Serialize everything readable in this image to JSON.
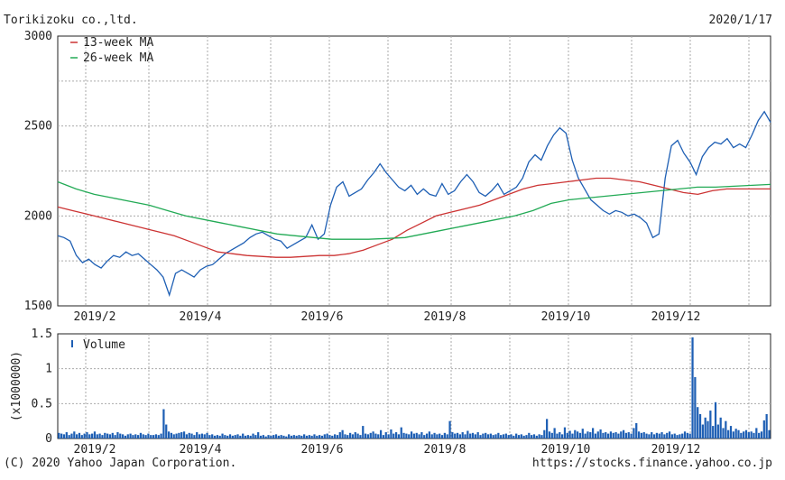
{
  "header": {
    "title": "Torikizoku co.,ltd.",
    "date": "2020/1/17"
  },
  "footer": {
    "copyright": "(C) 2020 Yahoo Japan Corporation.",
    "url": "https://stocks.finance.yahoo.co.jp"
  },
  "colors": {
    "price": "#1e5fb4",
    "ma13": "#cc3333",
    "ma26": "#22aa55",
    "volume": "#1e5fb4",
    "grid": "#aaaaaa"
  },
  "chart_data": [
    {
      "type": "line",
      "title": "Torikizoku co.,ltd.",
      "x_tick_labels": [
        "2019/2",
        "2019/4",
        "2019/6",
        "2019/8",
        "2019/10",
        "2019/12"
      ],
      "ylim": [
        1500,
        3000
      ],
      "y_ticks": [
        "1500",
        "2000",
        "2500",
        "3000"
      ],
      "grid": true,
      "legend_position": "top-left",
      "series": [
        {
          "name": "",
          "values": [
            1890,
            1880,
            1860,
            1780,
            1740,
            1760,
            1730,
            1710,
            1750,
            1780,
            1770,
            1800,
            1780,
            1790,
            1760,
            1730,
            1700,
            1660,
            1560,
            1680,
            1700,
            1680,
            1660,
            1700,
            1720,
            1730,
            1760,
            1790,
            1810,
            1830,
            1850,
            1880,
            1900,
            1910,
            1890,
            1870,
            1860,
            1820,
            1840,
            1860,
            1880,
            1950,
            1870,
            1900,
            2060,
            2160,
            2190,
            2110,
            2130,
            2150,
            2200,
            2240,
            2290,
            2240,
            2200,
            2160,
            2140,
            2170,
            2120,
            2150,
            2120,
            2110,
            2180,
            2120,
            2140,
            2190,
            2230,
            2190,
            2130,
            2110,
            2140,
            2180,
            2120,
            2140,
            2160,
            2210,
            2300,
            2340,
            2310,
            2390,
            2450,
            2490,
            2460,
            2310,
            2210,
            2150,
            2090,
            2060,
            2030,
            2010,
            2030,
            2020,
            2000,
            2010,
            1990,
            1960,
            1880,
            1900,
            2210,
            2390,
            2420,
            2350,
            2300,
            2230,
            2330,
            2380,
            2410,
            2400,
            2430,
            2380,
            2400,
            2380,
            2450,
            2530,
            2580,
            2520
          ]
        },
        {
          "name": "13-week MA",
          "values": [
            2050,
            2030,
            2010,
            1990,
            1970,
            1950,
            1930,
            1910,
            1890,
            1860,
            1830,
            1800,
            1790,
            1780,
            1775,
            1770,
            1770,
            1775,
            1780,
            1780,
            1790,
            1810,
            1840,
            1870,
            1920,
            1960,
            2000,
            2020,
            2040,
            2060,
            2090,
            2120,
            2150,
            2170,
            2180,
            2190,
            2200,
            2210,
            2210,
            2200,
            2190,
            2170,
            2150,
            2130,
            2120,
            2140,
            2150,
            2150,
            2150,
            2150
          ]
        },
        {
          "name": "26-week MA",
          "values": [
            2190,
            2150,
            2120,
            2100,
            2080,
            2060,
            2030,
            2000,
            1980,
            1960,
            1940,
            1920,
            1900,
            1890,
            1880,
            1870,
            1870,
            1870,
            1875,
            1880,
            1900,
            1920,
            1940,
            1960,
            1980,
            2000,
            2030,
            2070,
            2090,
            2100,
            2110,
            2120,
            2130,
            2140,
            2150,
            2160,
            2160,
            2165,
            2170,
            2175
          ]
        }
      ]
    },
    {
      "type": "bar",
      "ylabel": "(x1000000)",
      "ylim": [
        0,
        1.5
      ],
      "y_ticks": [
        "0",
        "0.5",
        "1",
        "1.5"
      ],
      "x_tick_labels": [
        "2019/2",
        "2019/4",
        "2019/6",
        "2019/8",
        "2019/10",
        "2019/12"
      ],
      "grid": true,
      "legend_position": "top-left",
      "series": [
        {
          "name": "Volume",
          "values": [
            0.08,
            0.07,
            0.06,
            0.09,
            0.05,
            0.07,
            0.1,
            0.06,
            0.08,
            0.05,
            0.07,
            0.09,
            0.06,
            0.07,
            0.1,
            0.06,
            0.07,
            0.05,
            0.08,
            0.07,
            0.06,
            0.08,
            0.05,
            0.09,
            0.07,
            0.06,
            0.04,
            0.06,
            0.07,
            0.05,
            0.06,
            0.05,
            0.08,
            0.06,
            0.05,
            0.07,
            0.05,
            0.05,
            0.06,
            0.05,
            0.07,
            0.42,
            0.2,
            0.1,
            0.08,
            0.06,
            0.07,
            0.08,
            0.09,
            0.1,
            0.06,
            0.08,
            0.07,
            0.05,
            0.09,
            0.06,
            0.07,
            0.06,
            0.08,
            0.05,
            0.06,
            0.04,
            0.05,
            0.04,
            0.07,
            0.05,
            0.04,
            0.06,
            0.04,
            0.05,
            0.06,
            0.04,
            0.07,
            0.04,
            0.05,
            0.04,
            0.07,
            0.05,
            0.09,
            0.04,
            0.05,
            0.03,
            0.05,
            0.04,
            0.05,
            0.06,
            0.04,
            0.05,
            0.04,
            0.03,
            0.06,
            0.04,
            0.05,
            0.04,
            0.05,
            0.04,
            0.06,
            0.04,
            0.05,
            0.04,
            0.06,
            0.04,
            0.05,
            0.04,
            0.06,
            0.07,
            0.05,
            0.04,
            0.06,
            0.05,
            0.09,
            0.12,
            0.06,
            0.05,
            0.08,
            0.06,
            0.09,
            0.07,
            0.05,
            0.18,
            0.07,
            0.06,
            0.08,
            0.1,
            0.07,
            0.06,
            0.12,
            0.05,
            0.09,
            0.06,
            0.13,
            0.07,
            0.09,
            0.06,
            0.16,
            0.08,
            0.07,
            0.06,
            0.1,
            0.07,
            0.08,
            0.06,
            0.09,
            0.05,
            0.07,
            0.1,
            0.06,
            0.08,
            0.06,
            0.07,
            0.05,
            0.08,
            0.06,
            0.25,
            0.09,
            0.07,
            0.08,
            0.06,
            0.09,
            0.06,
            0.11,
            0.07,
            0.08,
            0.06,
            0.09,
            0.05,
            0.07,
            0.08,
            0.06,
            0.07,
            0.05,
            0.06,
            0.08,
            0.05,
            0.06,
            0.07,
            0.05,
            0.06,
            0.04,
            0.07,
            0.05,
            0.06,
            0.04,
            0.05,
            0.08,
            0.05,
            0.06,
            0.04,
            0.06,
            0.05,
            0.12,
            0.28,
            0.1,
            0.08,
            0.15,
            0.07,
            0.09,
            0.06,
            0.16,
            0.08,
            0.11,
            0.07,
            0.12,
            0.1,
            0.08,
            0.14,
            0.07,
            0.1,
            0.09,
            0.15,
            0.07,
            0.1,
            0.13,
            0.08,
            0.09,
            0.07,
            0.1,
            0.08,
            0.09,
            0.07,
            0.1,
            0.12,
            0.08,
            0.09,
            0.07,
            0.15,
            0.22,
            0.1,
            0.08,
            0.09,
            0.07,
            0.06,
            0.09,
            0.06,
            0.08,
            0.07,
            0.09,
            0.06,
            0.08,
            0.1,
            0.06,
            0.07,
            0.05,
            0.06,
            0.07,
            0.1,
            0.08,
            0.07,
            1.45,
            0.88,
            0.45,
            0.35,
            0.2,
            0.3,
            0.25,
            0.4,
            0.18,
            0.52,
            0.2,
            0.3,
            0.15,
            0.25,
            0.12,
            0.18,
            0.1,
            0.14,
            0.12,
            0.08,
            0.1,
            0.12,
            0.09,
            0.1,
            0.08,
            0.15,
            0.08,
            0.1,
            0.26,
            0.35,
            0.12
          ]
        }
      ]
    }
  ]
}
